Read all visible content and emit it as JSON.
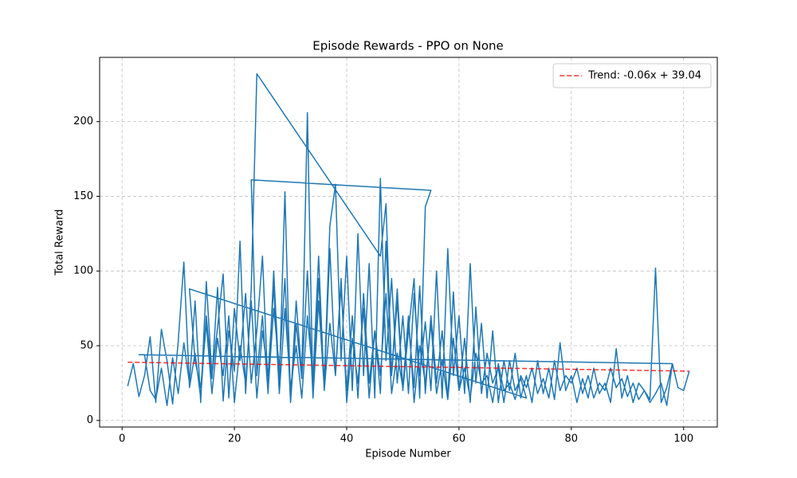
{
  "chart_data": {
    "type": "line",
    "title": "Episode Rewards - PPO on None",
    "xlabel": "Episode Number",
    "ylabel": "Total Reward",
    "xlim": [
      -4,
      106
    ],
    "ylim": [
      -4.4,
      243
    ],
    "xticks": [
      0,
      20,
      40,
      60,
      80,
      100
    ],
    "yticks": [
      0,
      50,
      100,
      150,
      200
    ],
    "grid": true,
    "legend": "upper right",
    "series": [
      {
        "color": "#1f77b4",
        "style": "solid",
        "x": [
          1,
          2,
          3,
          4,
          5,
          6,
          7,
          8,
          9,
          10,
          11,
          12,
          13,
          14,
          15,
          16,
          17,
          18,
          19,
          20,
          21,
          22,
          23,
          24,
          46,
          47,
          48,
          49,
          50,
          51,
          52,
          53,
          54,
          55,
          23,
          24,
          25,
          26,
          27,
          28,
          29,
          30,
          31,
          32,
          33,
          34,
          35,
          36,
          37,
          38,
          39,
          40,
          41,
          42,
          43,
          44,
          45,
          46,
          47,
          48,
          49,
          50,
          51,
          52,
          53,
          54,
          55,
          56,
          57,
          58,
          59,
          60,
          61,
          62,
          63,
          64,
          65,
          66,
          67,
          68,
          69,
          70,
          71,
          72,
          73,
          74,
          75,
          76,
          77,
          78,
          79,
          80,
          81,
          82,
          83,
          84,
          85,
          86,
          87,
          88,
          89,
          90,
          91,
          92,
          93,
          94,
          95,
          96,
          97,
          98,
          3,
          4,
          5,
          6,
          7,
          8,
          9,
          10,
          11,
          12,
          13,
          14,
          15,
          16,
          17,
          18,
          19,
          20,
          21,
          22,
          23,
          24,
          25,
          26,
          27,
          28,
          29,
          30,
          31,
          32,
          33,
          34,
          35,
          36,
          37,
          38,
          39,
          40,
          41,
          42,
          43,
          44,
          45,
          46,
          47,
          48,
          49,
          50,
          51,
          52,
          53,
          54,
          55,
          56,
          57,
          58,
          59,
          60,
          61,
          62,
          63,
          64,
          65,
          66,
          67,
          68,
          69,
          70,
          71,
          72,
          12,
          13,
          14,
          15,
          16,
          17,
          18,
          19,
          20,
          21,
          22,
          23,
          24,
          25,
          26,
          27,
          28,
          29,
          30,
          31,
          32,
          33,
          34,
          35,
          36,
          37,
          38,
          39,
          40,
          41,
          42,
          43,
          44,
          45,
          46,
          47,
          48,
          49,
          50,
          51,
          52,
          53,
          54,
          55,
          56,
          57,
          58,
          59,
          60,
          61,
          62,
          63,
          64,
          65,
          66,
          67,
          68,
          69,
          70,
          71,
          72,
          73,
          74,
          75,
          76,
          77,
          78,
          79,
          80,
          81,
          82,
          83,
          84,
          85,
          86,
          87,
          88,
          89,
          90,
          91,
          92,
          93,
          94,
          95,
          96,
          97,
          98,
          99,
          100,
          101
        ],
        "values": [
          23,
          38,
          16,
          30,
          56,
          12,
          61,
          40,
          11,
          53,
          106,
          22,
          45,
          15,
          70,
          28,
          89,
          13,
          60,
          33,
          120,
          18,
          88,
          232,
          110,
          145,
          30,
          88,
          20,
          60,
          95,
          15,
          143,
          154,
          161,
          30,
          70,
          18,
          100,
          25,
          153,
          12,
          80,
          30,
          206,
          15,
          95,
          25,
          130,
          158,
          40,
          110,
          20,
          125,
          30,
          105,
          15,
          162,
          40,
          95,
          25,
          70,
          18,
          85,
          30,
          66,
          20,
          100,
          15,
          115,
          30,
          70,
          18,
          105,
          25,
          65,
          15,
          60,
          12,
          40,
          20,
          45,
          15,
          30,
          12,
          40,
          18,
          35,
          14,
          52,
          20,
          30,
          12,
          28,
          15,
          35,
          18,
          25,
          12,
          48,
          15,
          30,
          12,
          25,
          20,
          14,
          102,
          12,
          22,
          38,
          44,
          44,
          20,
          14,
          35,
          10,
          42,
          18,
          52,
          25,
          80,
          12,
          93,
          30,
          62,
          98,
          15,
          75,
          40,
          85,
          25,
          60,
          110,
          20,
          75,
          35,
          95,
          12,
          65,
          28,
          100,
          15,
          80,
          22,
          115,
          30,
          90,
          20,
          70,
          15,
          85,
          25,
          60,
          18,
          120,
          30,
          80,
          20,
          65,
          22,
          90,
          18,
          70,
          25,
          60,
          15,
          86,
          20,
          55,
          12,
          76,
          18,
          45,
          25,
          35,
          12,
          40,
          20,
          28,
          15,
          88,
          40,
          22,
          65,
          18,
          55,
          30,
          70,
          12,
          50,
          25,
          80,
          15,
          60,
          30,
          90,
          18,
          75,
          22,
          50,
          15,
          70,
          28,
          110,
          20,
          65,
          30,
          95,
          12,
          55,
          25,
          75,
          15,
          60,
          30,
          85,
          18,
          45,
          22,
          70,
          12,
          50,
          25,
          65,
          18,
          40,
          14,
          55,
          20,
          35,
          15,
          45,
          25,
          30,
          12,
          38,
          20,
          25,
          14,
          30,
          22,
          35,
          18,
          28,
          15,
          40,
          20,
          30,
          25,
          35,
          18,
          30,
          15,
          25,
          20,
          35,
          22,
          28,
          16,
          25,
          14,
          20,
          12,
          18,
          25,
          10,
          38,
          22,
          20,
          33
        ]
      },
      {
        "name": "Trend: -0.06x + 39.04",
        "color": "#ff0000",
        "style": "dashed",
        "x": [
          1,
          101
        ],
        "values": [
          38.98,
          32.98
        ]
      }
    ]
  }
}
